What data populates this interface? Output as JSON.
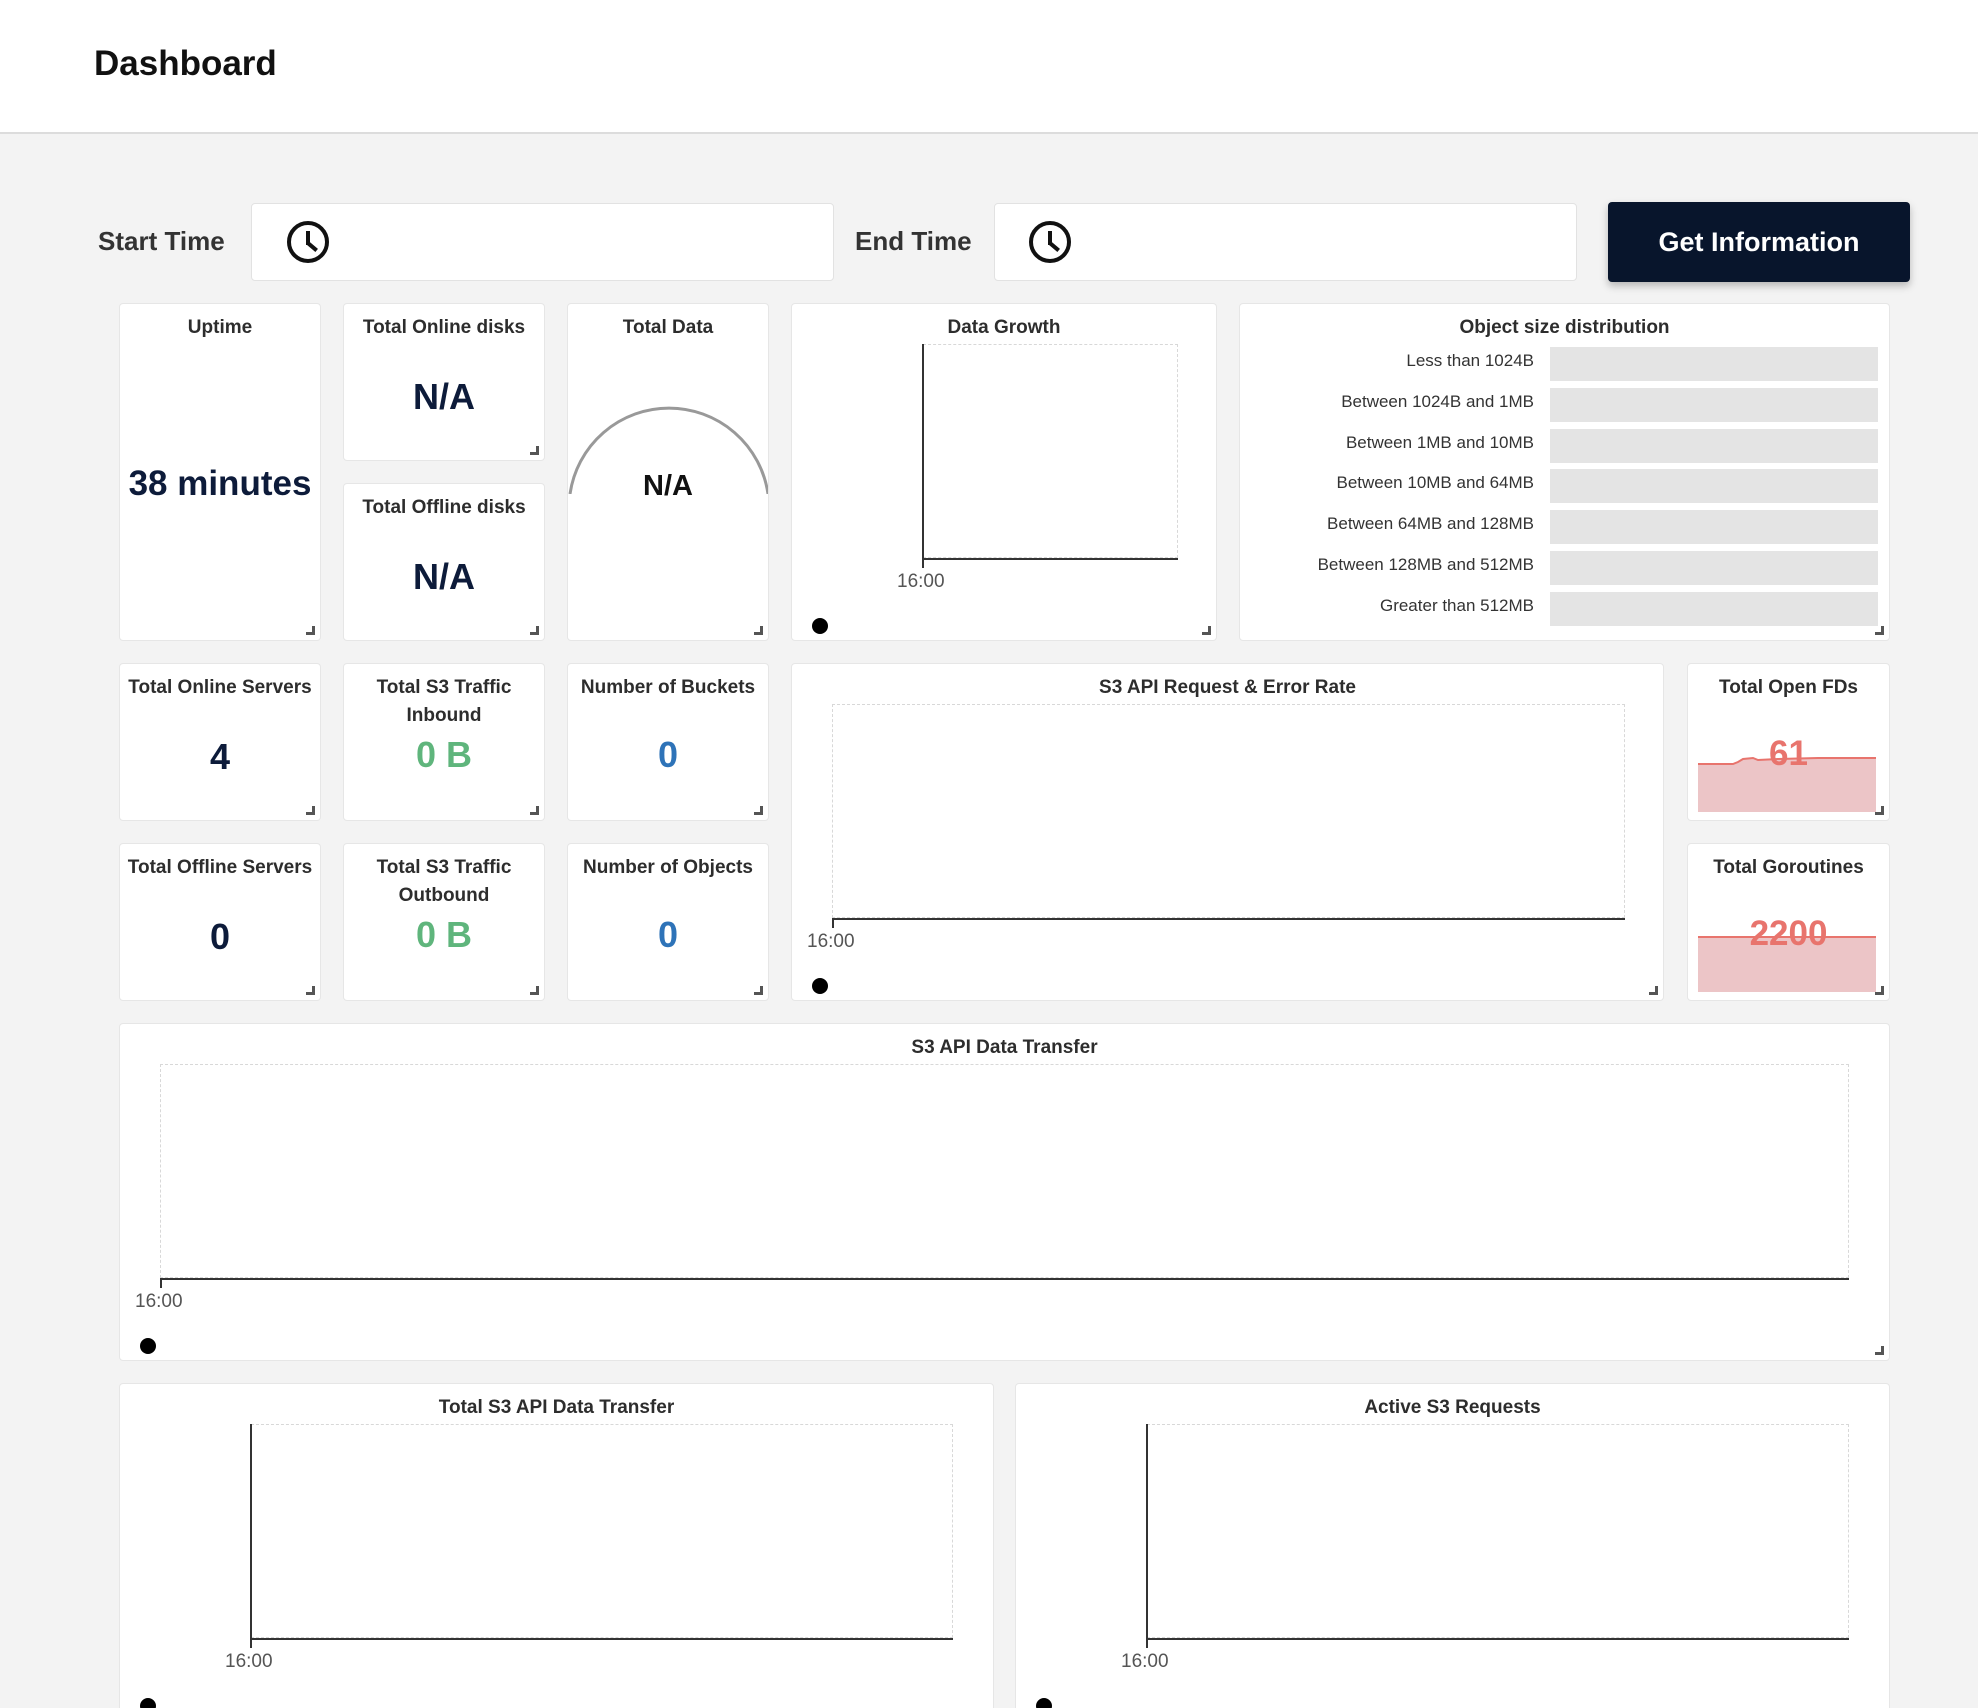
{
  "header": {
    "title": "Dashboard"
  },
  "time_filter": {
    "start_label": "Start Time",
    "start_value": "",
    "end_label": "End Time",
    "end_value": "",
    "button_label": "Get Information"
  },
  "widgets": {
    "uptime": {
      "title": "Uptime",
      "value": "38 minutes"
    },
    "online_disks": {
      "title": "Total Online disks",
      "value": "N/A"
    },
    "offline_disks": {
      "title": "Total Offline disks",
      "value": "N/A"
    },
    "total_data": {
      "title": "Total Data",
      "value": "N/A"
    },
    "data_growth": {
      "title": "Data Growth",
      "tick": "16:00"
    },
    "object_size": {
      "title": "Object size distribution",
      "rows": [
        "Less than 1024B",
        "Between 1024B and 1MB",
        "Between 1MB and 10MB",
        "Between 10MB and 64MB",
        "Between 64MB and 128MB",
        "Between 128MB and 512MB",
        "Greater than 512MB"
      ]
    },
    "online_servers": {
      "title": "Total Online Servers",
      "value": "4"
    },
    "offline_servers": {
      "title": "Total Offline Servers",
      "value": "0"
    },
    "traffic_in": {
      "title_line1": "Total S3 Traffic",
      "title_line2": "Inbound",
      "value": "0 B"
    },
    "traffic_out": {
      "title_line1": "Total S3 Traffic",
      "title_line2": "Outbound",
      "value": "0 B"
    },
    "buckets": {
      "title": "Number of Buckets",
      "value": "0"
    },
    "objects": {
      "title": "Number of Objects",
      "value": "0"
    },
    "api_rate": {
      "title": "S3 API Request & Error Rate",
      "tick": "16:00"
    },
    "open_fds": {
      "title": "Total Open FDs",
      "value": "61"
    },
    "goroutines": {
      "title": "Total Goroutines",
      "value": "2200"
    },
    "data_transfer": {
      "title": "S3 API Data Transfer",
      "tick": "16:00"
    },
    "total_transfer": {
      "title": "Total S3 API Data Transfer",
      "tick": "16:00"
    },
    "active_requests": {
      "title": "Active S3 Requests",
      "tick": "16:00"
    }
  },
  "colors": {
    "navy": "#0d1b3a",
    "green": "#5fb57c",
    "blue": "#2e73b8",
    "red": "#e8746d",
    "button": "#08152c"
  }
}
